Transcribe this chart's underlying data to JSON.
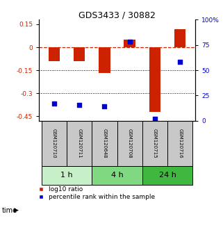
{
  "title": "GDS3433 / 30882",
  "samples": [
    "GSM120710",
    "GSM120711",
    "GSM120648",
    "GSM120708",
    "GSM120715",
    "GSM120716"
  ],
  "log10_ratio": [
    -0.09,
    -0.09,
    -0.17,
    0.05,
    -0.42,
    0.12
  ],
  "percentile_rank": [
    17,
    16,
    14,
    78,
    2,
    58
  ],
  "groups": [
    {
      "label": "1 h",
      "indices": [
        0,
        1
      ],
      "color": "#c8f0c8"
    },
    {
      "label": "4 h",
      "indices": [
        2,
        3
      ],
      "color": "#80d880"
    },
    {
      "label": "24 h",
      "indices": [
        4,
        5
      ],
      "color": "#40b840"
    }
  ],
  "bar_color": "#cc2200",
  "dot_color": "#0000cc",
  "ylim_left": [
    -0.48,
    0.18
  ],
  "yticks_left": [
    0.15,
    0,
    -0.15,
    -0.3,
    -0.45
  ],
  "yticks_right": [
    100,
    75,
    50,
    25,
    0
  ],
  "dotted_lines": [
    -0.15,
    -0.3
  ],
  "bar_width": 0.45,
  "sample_bg_color": "#c8c8c8",
  "left_tick_color": "#cc2200",
  "right_tick_color": "#0000cc",
  "title_fontsize": 9,
  "tick_fontsize": 6.5,
  "sample_fontsize": 5.0,
  "legend_fontsize": 6.5,
  "group_label_fontsize": 8,
  "time_label_fontsize": 7
}
